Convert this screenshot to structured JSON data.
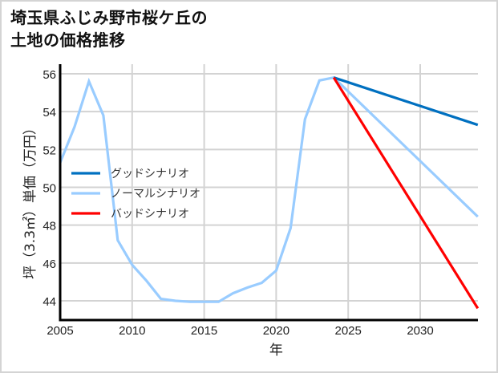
{
  "title": {
    "line1": "埼玉県ふじみ野市桜ケ丘の",
    "line2": "土地の価格推移"
  },
  "chart_data": {
    "type": "line",
    "title": "埼玉県ふじみ野市桜ケ丘の土地の価格推移",
    "xlabel": "年",
    "ylabel": "坪（3.3㎡）単価（万円）",
    "xlim": [
      2005,
      2034
    ],
    "ylim": [
      43,
      56.3
    ],
    "x_ticks": [
      2005,
      2010,
      2015,
      2020,
      2025,
      2030
    ],
    "y_ticks": [
      44,
      46,
      48,
      50,
      52,
      54,
      56
    ],
    "grid": true,
    "legend_position": "center-left",
    "series": [
      {
        "name": "グッドシナリオ",
        "color": "#0070c0",
        "x": [
          2024,
          2034
        ],
        "values": [
          55.8,
          53.3
        ]
      },
      {
        "name": "ノーマルシナリオ",
        "color": "#99ccff",
        "x": [
          2005,
          2006,
          2007,
          2008,
          2009,
          2010,
          2011,
          2012,
          2013,
          2014,
          2015,
          2016,
          2017,
          2018,
          2019,
          2020,
          2021,
          2022,
          2023,
          2024,
          2034
        ],
        "values": [
          51.3,
          53.2,
          55.6,
          53.8,
          47.2,
          45.9,
          45.05,
          44.1,
          44.0,
          43.95,
          43.95,
          43.95,
          44.4,
          44.7,
          44.95,
          45.6,
          47.85,
          53.6,
          55.65,
          55.8,
          48.45
        ]
      },
      {
        "name": "バッドシナリオ",
        "color": "#ff0000",
        "x": [
          2024,
          2034
        ],
        "values": [
          55.8,
          43.6
        ]
      }
    ]
  }
}
